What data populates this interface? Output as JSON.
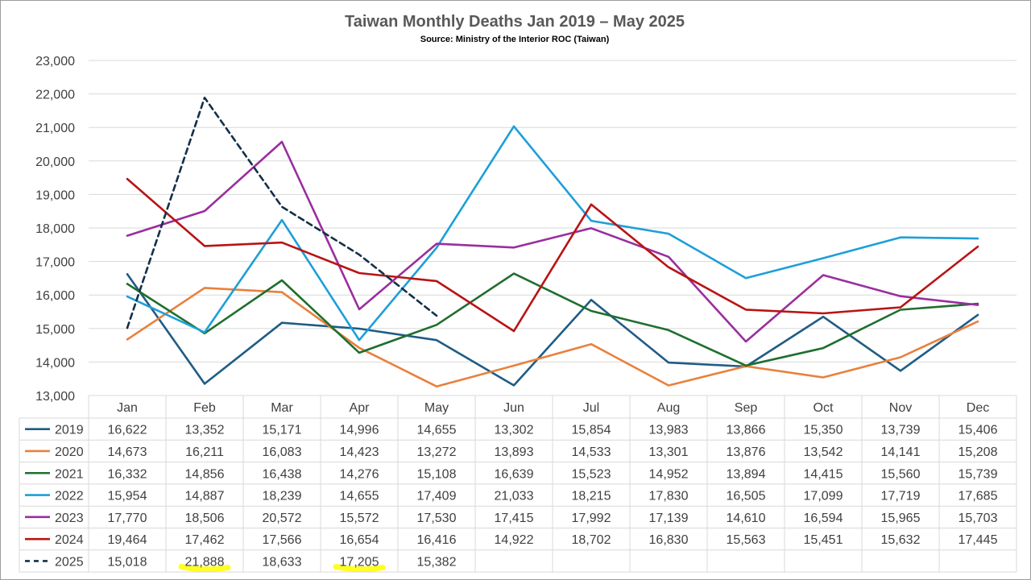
{
  "chart_data": {
    "type": "line",
    "title": "Taiwan Monthly Deaths Jan 2019 – May 2025",
    "subtitle": "Source: Ministry of the Interior ROC (Taiwan)",
    "xlabel": "",
    "ylabel": "",
    "ylim": [
      13000,
      23000
    ],
    "yticks": [
      "13,000",
      "14,000",
      "15,000",
      "16,000",
      "17,000",
      "18,000",
      "19,000",
      "20,000",
      "21,000",
      "22,000",
      "23,000"
    ],
    "grid": true,
    "legend": "data-table",
    "categories": [
      "Jan",
      "Feb",
      "Mar",
      "Apr",
      "May",
      "Jun",
      "Jul",
      "Aug",
      "Sep",
      "Oct",
      "Nov",
      "Dec"
    ],
    "series": [
      {
        "name": "2019",
        "color": "#1f5c85",
        "dashed": false,
        "values": [
          16622,
          13352,
          15171,
          14996,
          14655,
          13302,
          15854,
          13983,
          13866,
          15350,
          13739,
          15406
        ],
        "labels": [
          "16,622",
          "13,352",
          "15,171",
          "14,996",
          "14,655",
          "13,302",
          "15,854",
          "13,983",
          "13,866",
          "15,350",
          "13,739",
          "15,406"
        ]
      },
      {
        "name": "2020",
        "color": "#e9803c",
        "dashed": false,
        "values": [
          14673,
          16211,
          16083,
          14423,
          13272,
          13893,
          14533,
          13301,
          13876,
          13542,
          14141,
          15208
        ],
        "labels": [
          "14,673",
          "16,211",
          "16,083",
          "14,423",
          "13,272",
          "13,893",
          "14,533",
          "13,301",
          "13,876",
          "13,542",
          "14,141",
          "15,208"
        ]
      },
      {
        "name": "2021",
        "color": "#1f6f2e",
        "dashed": false,
        "values": [
          16332,
          14856,
          16438,
          14276,
          15108,
          16639,
          15523,
          14952,
          13894,
          14415,
          15560,
          15739
        ],
        "labels": [
          "16,332",
          "14,856",
          "16,438",
          "14,276",
          "15,108",
          "16,639",
          "15,523",
          "14,952",
          "13,894",
          "14,415",
          "15,560",
          "15,739"
        ]
      },
      {
        "name": "2022",
        "color": "#1d9fd8",
        "dashed": false,
        "values": [
          15954,
          14887,
          18239,
          14655,
          17409,
          21033,
          18215,
          17830,
          16505,
          17099,
          17719,
          17685
        ],
        "labels": [
          "15,954",
          "14,887",
          "18,239",
          "14,655",
          "17,409",
          "21,033",
          "18,215",
          "17,830",
          "16,505",
          "17,099",
          "17,719",
          "17,685"
        ]
      },
      {
        "name": "2023",
        "color": "#9a2e9e",
        "dashed": false,
        "values": [
          17770,
          18506,
          20572,
          15572,
          17530,
          17415,
          17992,
          17139,
          14610,
          16594,
          15965,
          15703
        ],
        "labels": [
          "17,770",
          "18,506",
          "20,572",
          "15,572",
          "17,530",
          "17,415",
          "17,992",
          "17,139",
          "14,610",
          "16,594",
          "15,965",
          "15,703"
        ]
      },
      {
        "name": "2024",
        "color": "#b81414",
        "dashed": false,
        "values": [
          19464,
          17462,
          17566,
          16654,
          16416,
          14922,
          18702,
          16830,
          15563,
          15451,
          15632,
          17445
        ],
        "labels": [
          "19,464",
          "17,462",
          "17,566",
          "16,654",
          "16,416",
          "14,922",
          "18,702",
          "16,830",
          "15,563",
          "15,451",
          "15,632",
          "17,445"
        ]
      },
      {
        "name": "2025",
        "color": "#13304a",
        "dashed": true,
        "values": [
          15018,
          21888,
          18633,
          17205,
          15382,
          null,
          null,
          null,
          null,
          null,
          null,
          null
        ],
        "labels": [
          "15,018",
          "21,888",
          "18,633",
          "17,205",
          "15,382",
          "",
          "",
          "",
          "",
          "",
          "",
          ""
        ],
        "highlighted": [
          "Feb",
          "Apr"
        ],
        "highlight_color": "#ffff00"
      }
    ]
  }
}
